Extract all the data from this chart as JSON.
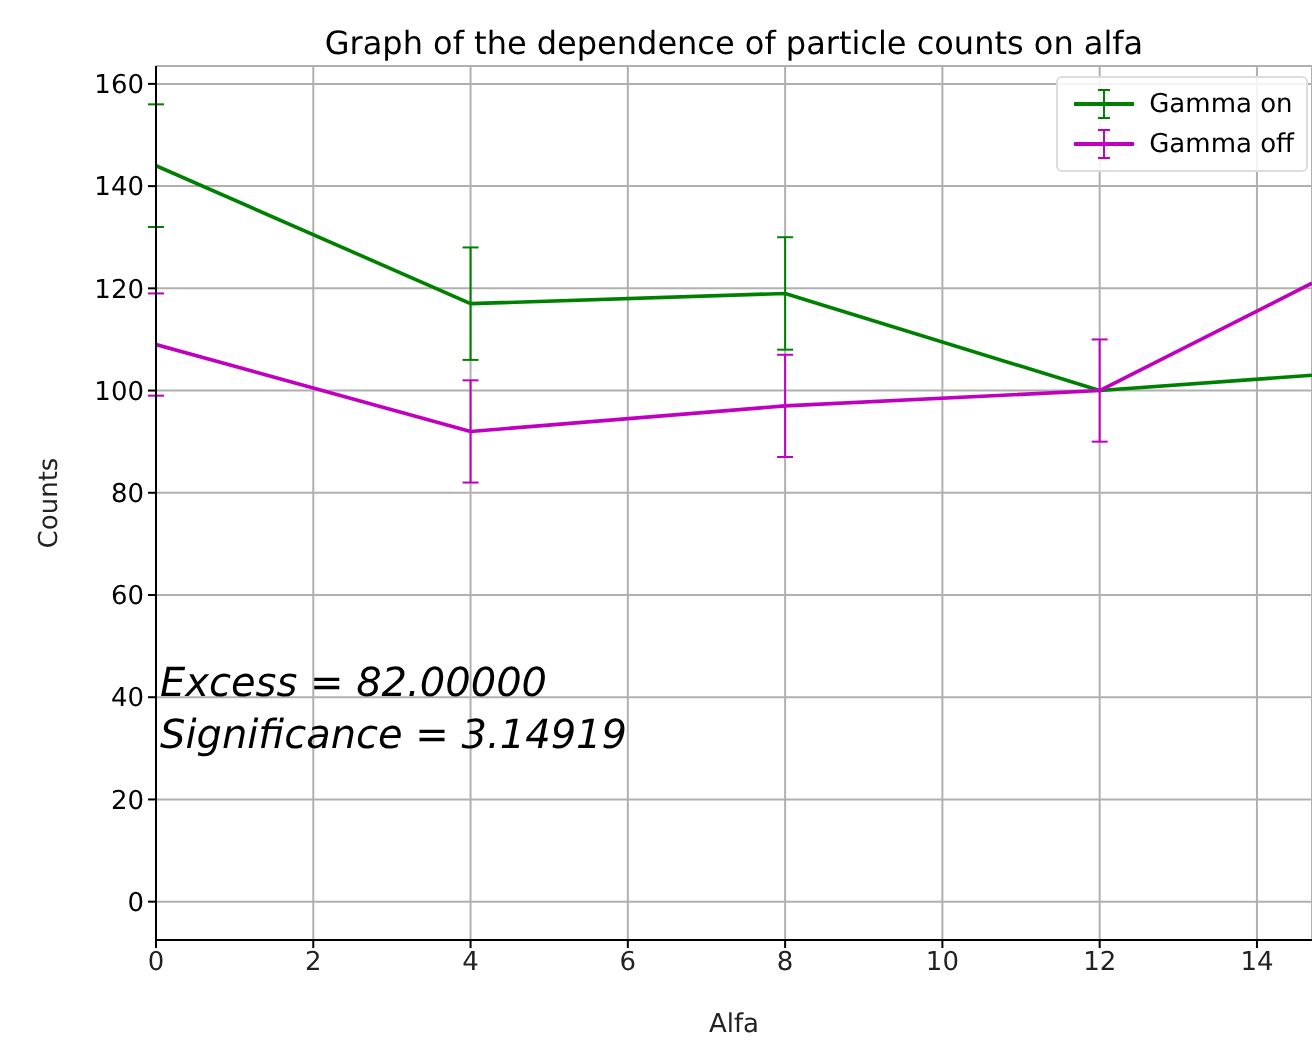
{
  "chart_data": {
    "type": "line",
    "title": "Graph of the dependence of particle counts on alfa",
    "xlabel": "Alfa",
    "ylabel": "Counts",
    "x": [
      0,
      4,
      8,
      12,
      14.7
    ],
    "series": [
      {
        "name": "Gamma on",
        "color": "#008000",
        "values": [
          144,
          117,
          119,
          100,
          103
        ],
        "errors": [
          12,
          11,
          11,
          null,
          null
        ]
      },
      {
        "name": "Gamma off",
        "color": "#c000c0",
        "values": [
          109,
          92,
          97,
          100,
          121
        ],
        "errors": [
          10,
          10,
          10,
          10,
          null
        ]
      }
    ],
    "xlim": [
      0,
      14.7
    ],
    "xticks": [
      0,
      2,
      4,
      6,
      8,
      10,
      12,
      14
    ],
    "ylim": [
      -7.5,
      163.5
    ],
    "yticks": [
      0,
      20,
      40,
      60,
      80,
      100,
      120,
      140,
      160
    ],
    "grid": true,
    "legend": "top right",
    "marker": "none",
    "line_style": "solid",
    "annotations": [
      "Excess = 82.00000",
      "Significance = 3.14919"
    ]
  }
}
